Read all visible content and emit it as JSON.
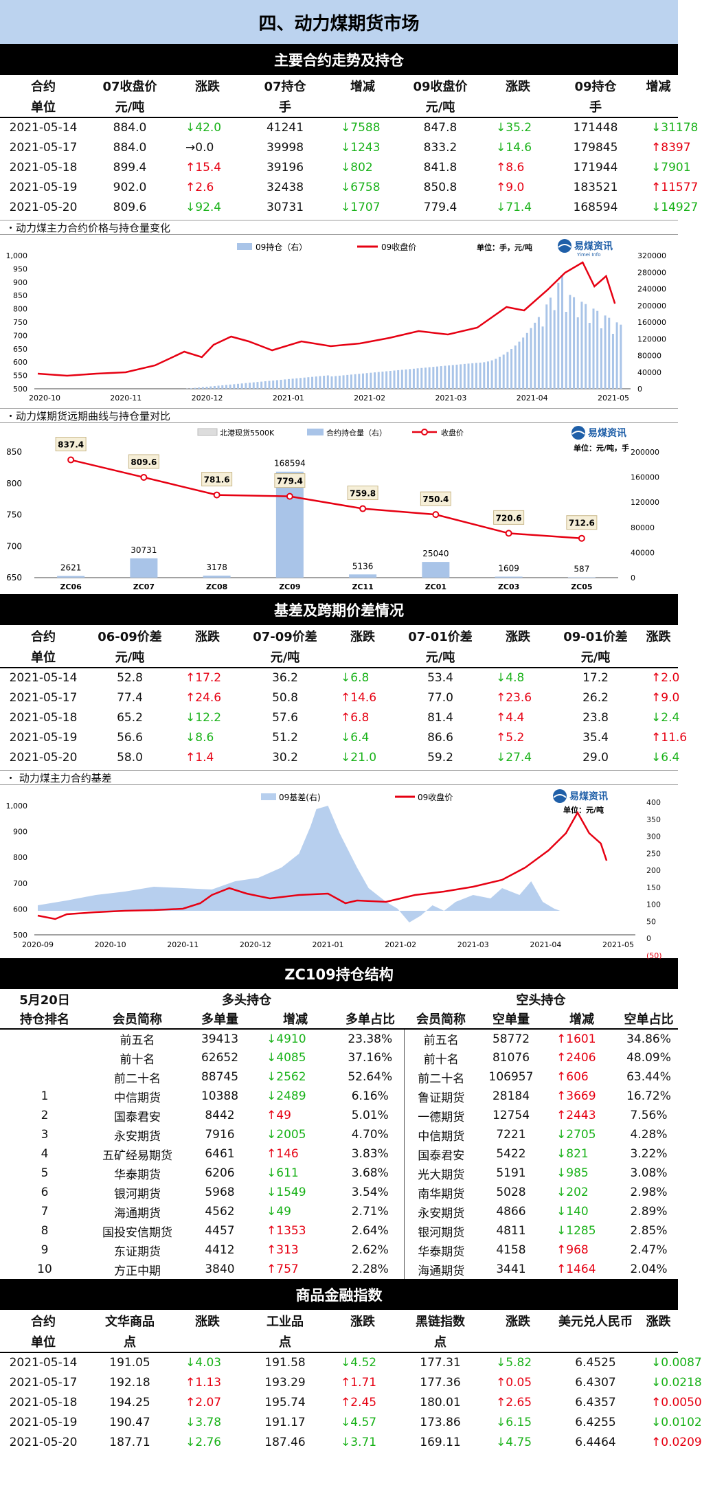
{
  "page_title": "四、动力煤期货市场",
  "sections": {
    "contracts": "主要合约走势及持仓",
    "basis": "基差及跨期价差情况",
    "position": "ZC109持仓结构",
    "index": "商品金融指数"
  },
  "contracts_table": {
    "head1": [
      "合约",
      "07收盘价",
      "涨跌",
      "07持仓",
      "增减",
      "09收盘价",
      "涨跌",
      "09持仓",
      "增减"
    ],
    "head2": [
      "单位",
      "元/吨",
      "",
      "手",
      "",
      "元/吨",
      "",
      "手",
      ""
    ],
    "rows": [
      {
        "date": "2021-05-14",
        "c07": "884.0",
        "d07": {
          "dir": "down",
          "v": "42.0"
        },
        "p07": "41241",
        "pd07": {
          "dir": "down",
          "v": "7588"
        },
        "c09": "847.8",
        "d09": {
          "dir": "down",
          "v": "35.2"
        },
        "p09": "171448",
        "pd09": {
          "dir": "down",
          "v": "31178"
        }
      },
      {
        "date": "2021-05-17",
        "c07": "884.0",
        "d07": {
          "dir": "flat",
          "v": "0.0"
        },
        "p07": "39998",
        "pd07": {
          "dir": "down",
          "v": "1243"
        },
        "c09": "833.2",
        "d09": {
          "dir": "down",
          "v": "14.6"
        },
        "p09": "179845",
        "pd09": {
          "dir": "up",
          "v": "8397"
        }
      },
      {
        "date": "2021-05-18",
        "c07": "899.4",
        "d07": {
          "dir": "up",
          "v": "15.4"
        },
        "p07": "39196",
        "pd07": {
          "dir": "down",
          "v": "802"
        },
        "c09": "841.8",
        "d09": {
          "dir": "up",
          "v": "8.6"
        },
        "p09": "171944",
        "pd09": {
          "dir": "down",
          "v": "7901"
        }
      },
      {
        "date": "2021-05-19",
        "c07": "902.0",
        "d07": {
          "dir": "up",
          "v": "2.6"
        },
        "p07": "32438",
        "pd07": {
          "dir": "down",
          "v": "6758"
        },
        "c09": "850.8",
        "d09": {
          "dir": "up",
          "v": "9.0"
        },
        "p09": "183521",
        "pd09": {
          "dir": "up",
          "v": "11577"
        }
      },
      {
        "date": "2021-05-20",
        "c07": "809.6",
        "d07": {
          "dir": "down",
          "v": "92.4"
        },
        "p07": "30731",
        "pd07": {
          "dir": "down",
          "v": "1707"
        },
        "c09": "779.4",
        "d09": {
          "dir": "down",
          "v": "71.4"
        },
        "p09": "168594",
        "pd09": {
          "dir": "down",
          "v": "14927"
        }
      }
    ]
  },
  "chart1": {
    "caption": "・动力煤主力合约价格与持仓量变化",
    "legend_bar": "09持仓（右）",
    "legend_line": "09收盘价",
    "unit": "单位：手，元/吨",
    "logo": "易煤资讯",
    "logo_sub": "Yimei Info",
    "y_left": [
      "1,000",
      "950",
      "900",
      "850",
      "800",
      "750",
      "700",
      "650",
      "600",
      "550",
      "500"
    ],
    "y_right": [
      "320000",
      "280000",
      "240000",
      "200000",
      "160000",
      "120000",
      "80000",
      "40000",
      "0"
    ],
    "x_labels": [
      "2020-10",
      "2020-11",
      "2020-12",
      "2021-01",
      "2021-02",
      "2021-03",
      "2021-04",
      "2021-05"
    ]
  },
  "chart2": {
    "caption": "・动力煤期货远期曲线与持仓量对比",
    "legend_a": "北港现货5500K",
    "legend_b": "合约持仓量（右）",
    "legend_c": "收盘价",
    "unit": "单位：元/吨，手",
    "logo": "易煤资讯",
    "y_left": [
      "850",
      "800",
      "750",
      "700",
      "650"
    ],
    "y_right": [
      "200000",
      "160000",
      "120000",
      "80000",
      "40000",
      "0"
    ]
  },
  "chart_data": [
    {
      "type": "bar+line",
      "x": [
        "ZC06",
        "ZC07",
        "ZC08",
        "ZC09",
        "ZC11",
        "ZC01",
        "ZC03",
        "ZC05"
      ],
      "series": [
        {
          "name": "合约持仓量（右）",
          "values": [
            2621,
            30731,
            3178,
            168594,
            5136,
            25040,
            1609,
            587
          ]
        },
        {
          "name": "收盘价",
          "values": [
            837.4,
            809.6,
            781.6,
            779.4,
            759.8,
            750.4,
            720.6,
            712.6
          ]
        }
      ],
      "ylim": [
        650,
        850
      ],
      "ylim_right": [
        0,
        200000
      ]
    }
  ],
  "basis_table": {
    "head1": [
      "合约",
      "06-09价差",
      "涨跌",
      "07-09价差",
      "涨跌",
      "07-01价差",
      "涨跌",
      "09-01价差",
      "涨跌"
    ],
    "head2": [
      "单位",
      "元/吨",
      "",
      "元/吨",
      "",
      "元/吨",
      "",
      "元/吨",
      ""
    ],
    "rows": [
      {
        "date": "2021-05-14",
        "a": "52.8",
        "da": {
          "dir": "up",
          "v": "17.2"
        },
        "b": "36.2",
        "db": {
          "dir": "down",
          "v": "6.8"
        },
        "c": "53.4",
        "dc": {
          "dir": "down",
          "v": "4.8"
        },
        "d": "17.2",
        "dd": {
          "dir": "up",
          "v": "2.0"
        }
      },
      {
        "date": "2021-05-17",
        "a": "77.4",
        "da": {
          "dir": "up",
          "v": "24.6"
        },
        "b": "50.8",
        "db": {
          "dir": "up",
          "v": "14.6"
        },
        "c": "77.0",
        "dc": {
          "dir": "up",
          "v": "23.6"
        },
        "d": "26.2",
        "dd": {
          "dir": "up",
          "v": "9.0"
        }
      },
      {
        "date": "2021-05-18",
        "a": "65.2",
        "da": {
          "dir": "down",
          "v": "12.2"
        },
        "b": "57.6",
        "db": {
          "dir": "up",
          "v": "6.8"
        },
        "c": "81.4",
        "dc": {
          "dir": "up",
          "v": "4.4"
        },
        "d": "23.8",
        "dd": {
          "dir": "down",
          "v": "2.4"
        }
      },
      {
        "date": "2021-05-19",
        "a": "56.6",
        "da": {
          "dir": "down",
          "v": "8.6"
        },
        "b": "51.2",
        "db": {
          "dir": "down",
          "v": "6.4"
        },
        "c": "86.6",
        "dc": {
          "dir": "up",
          "v": "5.2"
        },
        "d": "35.4",
        "dd": {
          "dir": "up",
          "v": "11.6"
        }
      },
      {
        "date": "2021-05-20",
        "a": "58.0",
        "da": {
          "dir": "up",
          "v": "1.4"
        },
        "b": "30.2",
        "db": {
          "dir": "down",
          "v": "21.0"
        },
        "c": "59.2",
        "dc": {
          "dir": "down",
          "v": "27.4"
        },
        "d": "29.0",
        "dd": {
          "dir": "down",
          "v": "6.4"
        }
      }
    ]
  },
  "chart3": {
    "caption": "・ 动力煤主力合约基差",
    "legend_area": "09基差(右)",
    "legend_line": "09收盘价",
    "unit": "单位：元/吨",
    "logo": "易煤资讯",
    "y_left": [
      "1,000",
      "900",
      "800",
      "700",
      "600",
      "500"
    ],
    "y_right": [
      "400",
      "350",
      "300",
      "250",
      "200",
      "150",
      "100",
      "50",
      "0",
      "(50)"
    ],
    "x_labels": [
      "2020-09",
      "2020-10",
      "2020-11",
      "2020-12",
      "2021-01",
      "2021-02",
      "2021-03",
      "2021-04",
      "2021-05"
    ]
  },
  "position": {
    "date": "5月20日",
    "long_title": "多头持仓",
    "short_title": "空头持仓",
    "head": [
      "持仓排名",
      "会员简称",
      "多单量",
      "增减",
      "多单占比",
      "会员简称",
      "空单量",
      "增减",
      "空单占比"
    ],
    "rows": [
      {
        "rank": "",
        "ln": "前五名",
        "lv": "39413",
        "ld": {
          "dir": "down",
          "v": "4910"
        },
        "lp": "23.38%",
        "sn": "前五名",
        "sv": "58772",
        "sd": {
          "dir": "up",
          "v": "1601"
        },
        "sp": "34.86%"
      },
      {
        "rank": "",
        "ln": "前十名",
        "lv": "62652",
        "ld": {
          "dir": "down",
          "v": "4085"
        },
        "lp": "37.16%",
        "sn": "前十名",
        "sv": "81076",
        "sd": {
          "dir": "up",
          "v": "2406"
        },
        "sp": "48.09%"
      },
      {
        "rank": "",
        "ln": "前二十名",
        "lv": "88745",
        "ld": {
          "dir": "down",
          "v": "2562"
        },
        "lp": "52.64%",
        "sn": "前二十名",
        "sv": "106957",
        "sd": {
          "dir": "up",
          "v": "606"
        },
        "sp": "63.44%"
      },
      {
        "rank": "1",
        "ln": "中信期货",
        "lv": "10388",
        "ld": {
          "dir": "down",
          "v": "2489"
        },
        "lp": "6.16%",
        "sn": "鲁证期货",
        "sv": "28184",
        "sd": {
          "dir": "up",
          "v": "3669"
        },
        "sp": "16.72%"
      },
      {
        "rank": "2",
        "ln": "国泰君安",
        "lv": "8442",
        "ld": {
          "dir": "up",
          "v": "49"
        },
        "lp": "5.01%",
        "sn": "一德期货",
        "sv": "12754",
        "sd": {
          "dir": "up",
          "v": "2443"
        },
        "sp": "7.56%"
      },
      {
        "rank": "3",
        "ln": "永安期货",
        "lv": "7916",
        "ld": {
          "dir": "down",
          "v": "2005"
        },
        "lp": "4.70%",
        "sn": "中信期货",
        "sv": "7221",
        "sd": {
          "dir": "down",
          "v": "2705"
        },
        "sp": "4.28%"
      },
      {
        "rank": "4",
        "ln": "五矿经易期货",
        "lv": "6461",
        "ld": {
          "dir": "up",
          "v": "146"
        },
        "lp": "3.83%",
        "sn": "国泰君安",
        "sv": "5422",
        "sd": {
          "dir": "down",
          "v": "821"
        },
        "sp": "3.22%"
      },
      {
        "rank": "5",
        "ln": "华泰期货",
        "lv": "6206",
        "ld": {
          "dir": "down",
          "v": "611"
        },
        "lp": "3.68%",
        "sn": "光大期货",
        "sv": "5191",
        "sd": {
          "dir": "down",
          "v": "985"
        },
        "sp": "3.08%"
      },
      {
        "rank": "6",
        "ln": "银河期货",
        "lv": "5968",
        "ld": {
          "dir": "down",
          "v": "1549"
        },
        "lp": "3.54%",
        "sn": "南华期货",
        "sv": "5028",
        "sd": {
          "dir": "down",
          "v": "202"
        },
        "sp": "2.98%"
      },
      {
        "rank": "7",
        "ln": "海通期货",
        "lv": "4562",
        "ld": {
          "dir": "down",
          "v": "49"
        },
        "lp": "2.71%",
        "sn": "永安期货",
        "sv": "4866",
        "sd": {
          "dir": "down",
          "v": "140"
        },
        "sp": "2.89%"
      },
      {
        "rank": "8",
        "ln": "国投安信期货",
        "lv": "4457",
        "ld": {
          "dir": "up",
          "v": "1353"
        },
        "lp": "2.64%",
        "sn": "银河期货",
        "sv": "4811",
        "sd": {
          "dir": "down",
          "v": "1285"
        },
        "sp": "2.85%"
      },
      {
        "rank": "9",
        "ln": "东证期货",
        "lv": "4412",
        "ld": {
          "dir": "up",
          "v": "313"
        },
        "lp": "2.62%",
        "sn": "华泰期货",
        "sv": "4158",
        "sd": {
          "dir": "up",
          "v": "968"
        },
        "sp": "2.47%"
      },
      {
        "rank": "10",
        "ln": "方正中期",
        "lv": "3840",
        "ld": {
          "dir": "up",
          "v": "757"
        },
        "lp": "2.28%",
        "sn": "海通期货",
        "sv": "3441",
        "sd": {
          "dir": "up",
          "v": "1464"
        },
        "sp": "2.04%"
      }
    ]
  },
  "index_table": {
    "head1": [
      "合约",
      "文华商品",
      "涨跌",
      "工业品",
      "涨跌",
      "黑链指数",
      "涨跌",
      "美元兑人民币",
      "涨跌"
    ],
    "head2": [
      "单位",
      "点",
      "",
      "点",
      "",
      "点",
      "",
      "",
      ""
    ],
    "rows": [
      {
        "date": "2021-05-14",
        "a": "191.05",
        "da": {
          "dir": "down",
          "v": "4.03"
        },
        "b": "191.58",
        "db": {
          "dir": "down",
          "v": "4.52"
        },
        "c": "177.31",
        "dc": {
          "dir": "down",
          "v": "5.82"
        },
        "d": "6.4525",
        "dd": {
          "dir": "down",
          "v": "0.0087"
        }
      },
      {
        "date": "2021-05-17",
        "a": "192.18",
        "da": {
          "dir": "up",
          "v": "1.13"
        },
        "b": "193.29",
        "db": {
          "dir": "up",
          "v": "1.71"
        },
        "c": "177.36",
        "dc": {
          "dir": "up",
          "v": "0.05"
        },
        "d": "6.4307",
        "dd": {
          "dir": "down",
          "v": "0.0218"
        }
      },
      {
        "date": "2021-05-18",
        "a": "194.25",
        "da": {
          "dir": "up",
          "v": "2.07"
        },
        "b": "195.74",
        "db": {
          "dir": "up",
          "v": "2.45"
        },
        "c": "180.01",
        "dc": {
          "dir": "up",
          "v": "2.65"
        },
        "d": "6.4357",
        "dd": {
          "dir": "up",
          "v": "0.0050"
        }
      },
      {
        "date": "2021-05-19",
        "a": "190.47",
        "da": {
          "dir": "down",
          "v": "3.78"
        },
        "b": "191.17",
        "db": {
          "dir": "down",
          "v": "4.57"
        },
        "c": "173.86",
        "dc": {
          "dir": "down",
          "v": "6.15"
        },
        "d": "6.4255",
        "dd": {
          "dir": "down",
          "v": "0.0102"
        }
      },
      {
        "date": "2021-05-20",
        "a": "187.71",
        "da": {
          "dir": "down",
          "v": "2.76"
        },
        "b": "187.46",
        "db": {
          "dir": "down",
          "v": "3.71"
        },
        "c": "169.11",
        "dc": {
          "dir": "down",
          "v": "4.75"
        },
        "d": "6.4464",
        "dd": {
          "dir": "up",
          "v": "0.0209"
        }
      }
    ]
  },
  "arrows": {
    "up": "↑",
    "down": "↓",
    "flat": "→"
  }
}
